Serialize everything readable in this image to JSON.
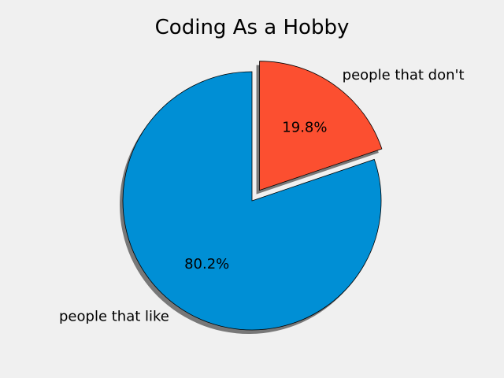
{
  "chart_data": {
    "type": "pie",
    "title": "Coding As a Hobby",
    "labels": [
      "people that like",
      "people that don't"
    ],
    "values": [
      80.2,
      19.8
    ],
    "percent_labels": [
      "80.2%",
      "19.8%"
    ],
    "colors": [
      "#008fd5",
      "#fc4f30"
    ],
    "explode": [
      0,
      0.1
    ],
    "shadow": true,
    "start_angle_deg": 90
  }
}
